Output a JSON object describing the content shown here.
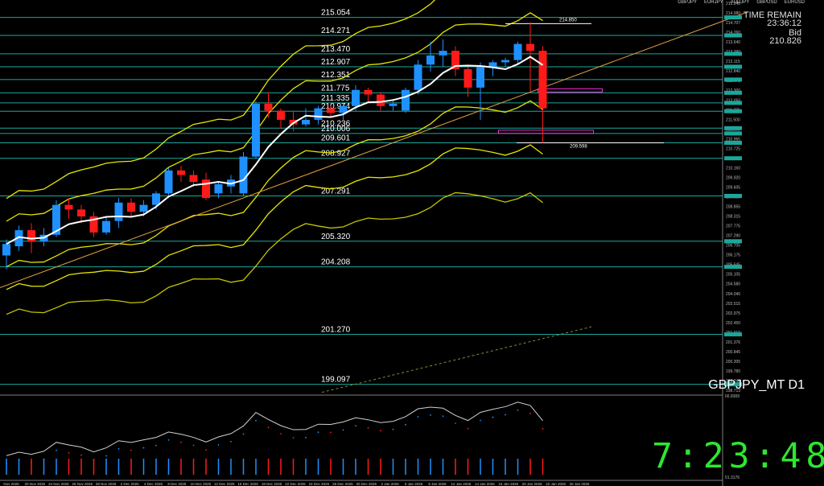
{
  "chart_data": {
    "type": "candlestick",
    "symbol": "GBPJPY_MT D1",
    "ylim": [
      198.7,
      215.6
    ],
    "dates": [
      "Nov 2025",
      "20 Nov 2025",
      "24 Nov 2025",
      "26 Nov 2025",
      "28 Nov 2025",
      "2 Dec 2025",
      "4 Dec 2025",
      "8 Dec 2025",
      "10 Dec 2025",
      "12 Dec 2025",
      "16 Dec 2025",
      "18 Dec 2025",
      "22 Dec 2025",
      "24 Dec 2025",
      "26 Dec 2025",
      "30 Dec 2025",
      "2 Jan 2026",
      "6 Jan 2026",
      "8 Jan 2026",
      "12 Jan 2026",
      "14 Jan 2026",
      "16 Jan 2026",
      "20 Jan 2026",
      "22 Jan 2026",
      "26 Jan 2026"
    ],
    "candles": [
      {
        "o": 204.7,
        "h": 205.4,
        "c": 205.2,
        "l": 204.1
      },
      {
        "o": 205.1,
        "h": 206.0,
        "c": 205.8,
        "l": 204.9
      },
      {
        "o": 205.8,
        "h": 206.1,
        "c": 205.3,
        "l": 204.8
      },
      {
        "o": 205.3,
        "h": 205.9,
        "c": 205.6,
        "l": 205.1
      },
      {
        "o": 205.6,
        "h": 207.1,
        "c": 206.9,
        "l": 205.5
      },
      {
        "o": 206.9,
        "h": 207.2,
        "c": 206.7,
        "l": 206.3
      },
      {
        "o": 206.7,
        "h": 206.9,
        "c": 206.4,
        "l": 206.1
      },
      {
        "o": 206.4,
        "h": 206.6,
        "c": 205.7,
        "l": 205.5
      },
      {
        "o": 205.7,
        "h": 206.4,
        "c": 206.2,
        "l": 205.6
      },
      {
        "o": 206.2,
        "h": 207.2,
        "c": 207.0,
        "l": 205.9
      },
      {
        "o": 207.0,
        "h": 207.2,
        "c": 206.6,
        "l": 206.4
      },
      {
        "o": 206.6,
        "h": 207.1,
        "c": 206.9,
        "l": 206.4
      },
      {
        "o": 206.9,
        "h": 207.5,
        "c": 207.4,
        "l": 206.7
      },
      {
        "o": 207.4,
        "h": 208.5,
        "c": 208.4,
        "l": 207.2
      },
      {
        "o": 208.4,
        "h": 208.6,
        "c": 208.2,
        "l": 207.9
      },
      {
        "o": 208.2,
        "h": 208.4,
        "c": 207.9,
        "l": 207.7
      },
      {
        "o": 208.0,
        "h": 208.3,
        "c": 207.2,
        "l": 207.1
      },
      {
        "o": 207.4,
        "h": 207.9,
        "c": 207.8,
        "l": 207.2
      },
      {
        "o": 207.7,
        "h": 208.2,
        "c": 208.0,
        "l": 207.4
      },
      {
        "o": 207.4,
        "h": 209.2,
        "c": 209.0,
        "l": 207.3
      },
      {
        "o": 209.0,
        "h": 211.4,
        "c": 211.3,
        "l": 208.9
      },
      {
        "o": 211.3,
        "h": 211.8,
        "c": 211.0,
        "l": 210.7
      },
      {
        "o": 211.0,
        "h": 211.1,
        "c": 210.6,
        "l": 210.2
      },
      {
        "o": 210.6,
        "h": 211.0,
        "c": 210.4,
        "l": 210.1
      },
      {
        "o": 210.4,
        "h": 211.1,
        "c": 210.6,
        "l": 210.3
      },
      {
        "o": 210.6,
        "h": 211.2,
        "c": 211.1,
        "l": 210.4
      },
      {
        "o": 211.1,
        "h": 211.2,
        "c": 210.9,
        "l": 210.7
      },
      {
        "o": 210.9,
        "h": 211.3,
        "c": 211.2,
        "l": 210.6
      },
      {
        "o": 211.2,
        "h": 212.1,
        "c": 211.9,
        "l": 211.0
      },
      {
        "o": 211.9,
        "h": 212.0,
        "c": 211.7,
        "l": 211.4
      },
      {
        "o": 211.7,
        "h": 211.8,
        "c": 211.2,
        "l": 211.0
      },
      {
        "o": 211.2,
        "h": 211.5,
        "c": 211.3,
        "l": 211.0
      },
      {
        "o": 211.0,
        "h": 212.0,
        "c": 211.9,
        "l": 210.9
      },
      {
        "o": 211.9,
        "h": 213.2,
        "c": 213.0,
        "l": 211.7
      },
      {
        "o": 213.0,
        "h": 214.0,
        "c": 213.4,
        "l": 212.7
      },
      {
        "o": 213.4,
        "h": 214.1,
        "c": 213.6,
        "l": 212.9
      },
      {
        "o": 213.6,
        "h": 213.8,
        "c": 212.8,
        "l": 212.5
      },
      {
        "o": 212.8,
        "h": 212.9,
        "c": 212.0,
        "l": 211.6
      },
      {
        "o": 212.0,
        "h": 213.1,
        "c": 212.9,
        "l": 210.6
      },
      {
        "o": 212.9,
        "h": 213.2,
        "c": 213.1,
        "l": 212.5
      },
      {
        "o": 213.1,
        "h": 213.3,
        "c": 213.2,
        "l": 212.9
      },
      {
        "o": 213.2,
        "h": 214.0,
        "c": 213.9,
        "l": 213.0
      },
      {
        "o": 213.9,
        "h": 214.85,
        "c": 213.6,
        "l": 211.8
      },
      {
        "o": 213.6,
        "h": 213.8,
        "c": 211.1,
        "l": 209.6
      }
    ],
    "horizontal_levels": [
      215.054,
      214.271,
      213.47,
      212.907,
      212.351,
      211.775,
      211.335,
      210.974,
      210.236,
      210.006,
      209.601,
      208.927,
      207.291,
      205.32,
      204.208,
      201.27,
      199.097
    ],
    "high_marker": "214.850",
    "low_marker": "209.598",
    "y_ticks": [
      "215.245",
      "214.980",
      "214.707",
      "214.260",
      "213.640",
      "213.390",
      "213.115",
      "212.840",
      "212.575",
      "212.300",
      "212.050",
      "211.775",
      "211.500",
      "211.200",
      "210.965",
      "210.725",
      "210.450",
      "210.160",
      "209.920",
      "209.605",
      "209.380",
      "208.855",
      "208.315",
      "207.775",
      "207.290",
      "206.705",
      "206.175",
      "205.645",
      "205.105",
      "204.580",
      "204.040",
      "203.515",
      "202.975",
      "202.450",
      "201.910",
      "201.376",
      "200.845",
      "200.305",
      "199.780",
      "199.240",
      "198.713"
    ],
    "oscillator_top": "66.8309",
    "oscillator_bottom": "51.3176"
  },
  "header": {
    "symbol_tabs": [
      "GBPJPY",
      "EURJPY",
      "AUDJPY",
      "GBPUSD",
      "EURUSD"
    ],
    "time_remain_label": "TIME REMAIN",
    "time_remain_value": "23:36:12",
    "bid_label": "Bid",
    "bid_value": "210.826"
  },
  "chart_symbol_label": "GBPJPY_MT D1",
  "clock": "7:23:48",
  "colors": {
    "background": "#000000",
    "bull": "#1e90ff",
    "bear": "#ff1a1a",
    "levels": "#1aa79b",
    "bands": "#e6e600",
    "clock": "#2fe62f",
    "magenta": "#ff2bd6"
  }
}
